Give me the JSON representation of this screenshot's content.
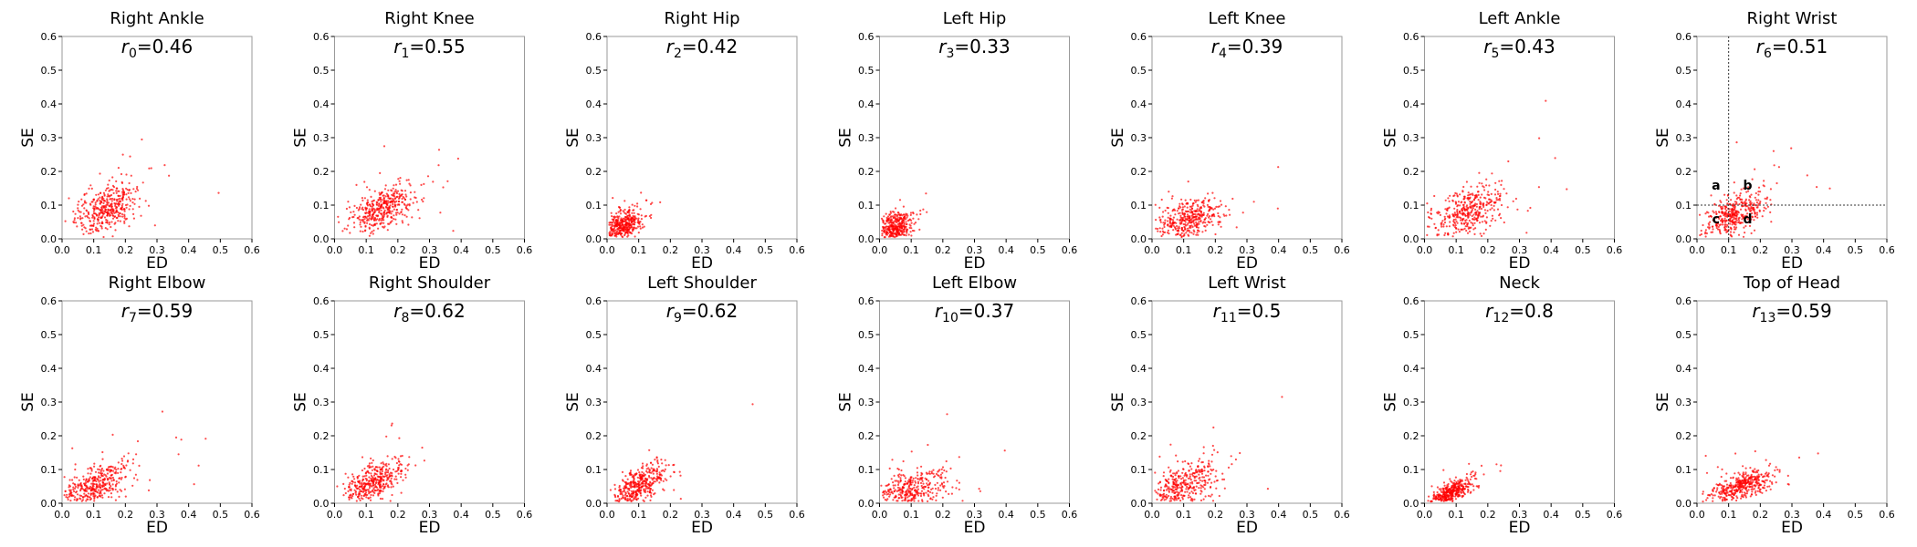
{
  "figure": {
    "xlabel": "ED",
    "ylabel": "SE",
    "axis_range": [
      0,
      0.6
    ],
    "ticks": [
      "0.0",
      "0.1",
      "0.2",
      "0.3",
      "0.4",
      "0.5",
      "0.6"
    ],
    "point_color": "#ff0000"
  },
  "chart_data": [
    {
      "type": "scatter",
      "title": "Right Ankle",
      "r_index": "0",
      "r_value": "0.46",
      "xlabel": "ED",
      "ylabel": "SE",
      "xlim": [
        0,
        0.6
      ],
      "ylim": [
        0,
        0.6
      ],
      "center": [
        0.14,
        0.09
      ],
      "spread": [
        0.05,
        0.035
      ]
    },
    {
      "type": "scatter",
      "title": "Right Knee",
      "r_index": "1",
      "r_value": "0.55",
      "xlabel": "ED",
      "ylabel": "SE",
      "xlim": [
        0,
        0.6
      ],
      "ylim": [
        0,
        0.6
      ],
      "center": [
        0.15,
        0.09
      ],
      "spread": [
        0.05,
        0.035
      ]
    },
    {
      "type": "scatter",
      "title": "Right Hip",
      "r_index": "2",
      "r_value": "0.42",
      "xlabel": "ED",
      "ylabel": "SE",
      "xlim": [
        0,
        0.6
      ],
      "ylim": [
        0,
        0.6
      ],
      "center": [
        0.05,
        0.04
      ],
      "spread": [
        0.03,
        0.025
      ]
    },
    {
      "type": "scatter",
      "title": "Left Hip",
      "r_index": "3",
      "r_value": "0.33",
      "xlabel": "ED",
      "ylabel": "SE",
      "xlim": [
        0,
        0.6
      ],
      "ylim": [
        0,
        0.6
      ],
      "center": [
        0.05,
        0.035
      ],
      "spread": [
        0.03,
        0.025
      ]
    },
    {
      "type": "scatter",
      "title": "Left Knee",
      "r_index": "4",
      "r_value": "0.39",
      "xlabel": "ED",
      "ylabel": "SE",
      "xlim": [
        0,
        0.6
      ],
      "ylim": [
        0,
        0.6
      ],
      "center": [
        0.12,
        0.06
      ],
      "spread": [
        0.05,
        0.03
      ]
    },
    {
      "type": "scatter",
      "title": "Left Ankle",
      "r_index": "5",
      "r_value": "0.43",
      "xlabel": "ED",
      "ylabel": "SE",
      "xlim": [
        0,
        0.6
      ],
      "ylim": [
        0,
        0.6
      ],
      "center": [
        0.14,
        0.08
      ],
      "spread": [
        0.055,
        0.04
      ]
    },
    {
      "type": "scatter",
      "title": "Right Wrist",
      "r_index": "6",
      "r_value": "0.51",
      "xlabel": "ED",
      "ylabel": "SE",
      "xlim": [
        0,
        0.6
      ],
      "ylim": [
        0,
        0.6
      ],
      "center": [
        0.12,
        0.07
      ],
      "spread": [
        0.05,
        0.035
      ],
      "reference_lines": {
        "x": 0.1,
        "y": 0.1
      },
      "region_labels": [
        {
          "text": "a",
          "x": 0.06,
          "y": 0.16
        },
        {
          "text": "b",
          "x": 0.16,
          "y": 0.16
        },
        {
          "text": "c",
          "x": 0.06,
          "y": 0.06
        },
        {
          "text": "d",
          "x": 0.16,
          "y": 0.06
        }
      ]
    },
    {
      "type": "scatter",
      "title": "Right Elbow",
      "r_index": "7",
      "r_value": "0.59",
      "xlabel": "ED",
      "ylabel": "SE",
      "xlim": [
        0,
        0.6
      ],
      "ylim": [
        0,
        0.6
      ],
      "center": [
        0.1,
        0.05
      ],
      "spread": [
        0.05,
        0.035
      ]
    },
    {
      "type": "scatter",
      "title": "Right Shoulder",
      "r_index": "8",
      "r_value": "0.62",
      "xlabel": "ED",
      "ylabel": "SE",
      "xlim": [
        0,
        0.6
      ],
      "ylim": [
        0,
        0.6
      ],
      "center": [
        0.12,
        0.06
      ],
      "spread": [
        0.05,
        0.035
      ]
    },
    {
      "type": "scatter",
      "title": "Left Shoulder",
      "r_index": "9",
      "r_value": "0.62",
      "xlabel": "ED",
      "ylabel": "SE",
      "xlim": [
        0,
        0.6
      ],
      "ylim": [
        0,
        0.6
      ],
      "center": [
        0.1,
        0.05
      ],
      "spread": [
        0.045,
        0.035
      ]
    },
    {
      "type": "scatter",
      "title": "Left Elbow",
      "r_index": "10",
      "r_value": "0.37",
      "xlabel": "ED",
      "ylabel": "SE",
      "xlim": [
        0,
        0.6
      ],
      "ylim": [
        0,
        0.6
      ],
      "center": [
        0.1,
        0.04
      ],
      "spread": [
        0.06,
        0.03
      ]
    },
    {
      "type": "scatter",
      "title": "Left Wrist",
      "r_index": "11",
      "r_value": "0.5",
      "xlabel": "ED",
      "ylabel": "SE",
      "xlim": [
        0,
        0.6
      ],
      "ylim": [
        0,
        0.6
      ],
      "center": [
        0.1,
        0.05
      ],
      "spread": [
        0.06,
        0.04
      ]
    },
    {
      "type": "scatter",
      "title": "Neck",
      "r_index": "12",
      "r_value": "0.8",
      "xlabel": "ED",
      "ylabel": "SE",
      "xlim": [
        0,
        0.6
      ],
      "ylim": [
        0,
        0.6
      ],
      "center": [
        0.08,
        0.03
      ],
      "spread": [
        0.04,
        0.025
      ]
    },
    {
      "type": "scatter",
      "title": "Top of Head",
      "r_index": "13",
      "r_value": "0.59",
      "xlabel": "ED",
      "ylabel": "SE",
      "xlim": [
        0,
        0.6
      ],
      "ylim": [
        0,
        0.6
      ],
      "center": [
        0.14,
        0.05
      ],
      "spread": [
        0.05,
        0.025
      ]
    }
  ]
}
